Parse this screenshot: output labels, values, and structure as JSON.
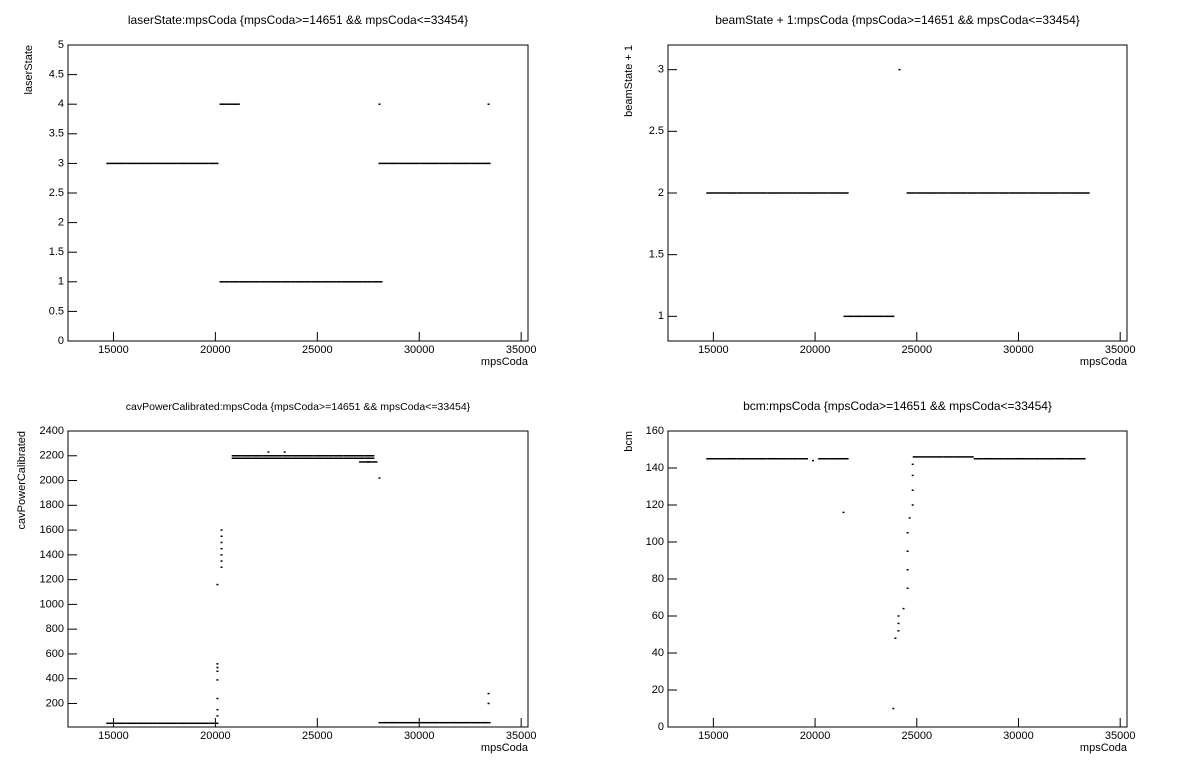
{
  "chart_data": [
    {
      "type": "scatter",
      "title": "laserState:mpsCoda {mpsCoda>=14651 && mpsCoda<=33454}",
      "x_label": "mpsCoda",
      "y_label": "laserState",
      "color": "#000000",
      "xlim": [
        12770,
        35335
      ],
      "xticks": [
        15000,
        20000,
        25000,
        30000,
        35000
      ],
      "ylim": [
        0,
        5
      ],
      "yticks": [
        0,
        0.5,
        1,
        1.5,
        2,
        2.5,
        3,
        3.5,
        4,
        4.5,
        5
      ],
      "x": [
        14900,
        15400,
        15900,
        16400,
        16900,
        17400,
        17900,
        18400,
        18900,
        19400,
        19900,
        20450,
        20950,
        20450,
        20950,
        21450,
        21950,
        22450,
        22950,
        23450,
        23950,
        24450,
        24950,
        25450,
        25950,
        26450,
        26950,
        27450,
        27950,
        28250,
        28750,
        29250,
        29750,
        30250,
        30750,
        31250,
        31750,
        32250,
        32750,
        33250,
        28050,
        33400
      ],
      "values": [
        3,
        3,
        3,
        3,
        3,
        3,
        3,
        3,
        3,
        3,
        3,
        4,
        4,
        1,
        1,
        1,
        1,
        1,
        1,
        1,
        1,
        1,
        1,
        1,
        1,
        1,
        1,
        1,
        1,
        3,
        3,
        3,
        3,
        3,
        3,
        3,
        3,
        3,
        3,
        3,
        4,
        4
      ]
    },
    {
      "type": "scatter",
      "title": "beamState + 1:mpsCoda {mpsCoda>=14651 && mpsCoda<=33454}",
      "x_label": "mpsCoda",
      "y_label": "beamState + 1",
      "color": "#000000",
      "xlim": [
        12770,
        35335
      ],
      "xticks": [
        15000,
        20000,
        25000,
        30000,
        35000
      ],
      "ylim": [
        0.8,
        3.2
      ],
      "yticks": [
        1,
        1.5,
        2,
        2.5,
        3
      ],
      "x": [
        14900,
        15400,
        15900,
        16400,
        16900,
        17400,
        17900,
        18400,
        18900,
        19400,
        19900,
        20400,
        20900,
        21400,
        21650,
        22150,
        22650,
        23150,
        23650,
        24150,
        24750,
        25250,
        25750,
        26250,
        26750,
        27250,
        27750,
        28250,
        28750,
        29250,
        29750,
        30250,
        30750,
        31250,
        31750,
        32250,
        32750,
        33250
      ],
      "values": [
        2,
        2,
        2,
        2,
        2,
        2,
        2,
        2,
        2,
        2,
        2,
        2,
        2,
        2,
        1,
        1,
        1,
        1,
        1,
        3,
        2,
        2,
        2,
        2,
        2,
        2,
        2,
        2,
        2,
        2,
        2,
        2,
        2,
        2,
        2,
        2,
        2,
        2
      ]
    },
    {
      "type": "scatter",
      "title": "cavPowerCalibrated:mpsCoda {mpsCoda>=14651 && mpsCoda<=33454}",
      "x_label": "mpsCoda",
      "y_label": "cavPowerCalibrated",
      "color": "#000000",
      "xlim": [
        12770,
        35335
      ],
      "xticks": [
        15000,
        20000,
        25000,
        30000,
        35000
      ],
      "ylim": [
        10,
        2400
      ],
      "yticks": [
        200,
        400,
        600,
        800,
        1000,
        1200,
        1400,
        1600,
        1800,
        2000,
        2200,
        2400
      ],
      "x": [
        14900,
        15400,
        15900,
        16400,
        16900,
        17400,
        17900,
        18400,
        18900,
        19400,
        19900,
        28250,
        28750,
        29250,
        29750,
        30250,
        30750,
        31250,
        31750,
        32250,
        32750,
        33250,
        20300,
        20300,
        20300,
        20300,
        20300,
        20300,
        20300,
        20100,
        20100,
        20100,
        20100,
        20100,
        20100,
        20100,
        20100,
        21050,
        21550,
        22050,
        22550,
        23050,
        23550,
        24050,
        24550,
        25050,
        25550,
        26050,
        26550,
        27050,
        27550,
        21050,
        21550,
        22050,
        22550,
        23050,
        23550,
        24050,
        24550,
        25050,
        25550,
        26050,
        26550,
        27050,
        27550,
        22600,
        23400,
        27300,
        27700,
        28050,
        33400,
        33400
      ],
      "values": [
        40,
        40,
        40,
        40,
        40,
        40,
        40,
        40,
        40,
        40,
        40,
        45,
        45,
        45,
        45,
        45,
        45,
        45,
        45,
        45,
        45,
        45,
        1600,
        1550,
        1500,
        1450,
        1400,
        1350,
        1300,
        1160,
        520,
        490,
        460,
        390,
        240,
        150,
        100,
        2200,
        2200,
        2200,
        2200,
        2200,
        2200,
        2200,
        2200,
        2200,
        2200,
        2200,
        2200,
        2200,
        2200,
        2180,
        2180,
        2180,
        2180,
        2180,
        2180,
        2180,
        2180,
        2180,
        2180,
        2180,
        2180,
        2180,
        2180,
        2230,
        2230,
        2150,
        2150,
        2020,
        280,
        200
      ]
    },
    {
      "type": "scatter",
      "title": "bcm:mpsCoda {mpsCoda>=14651 && mpsCoda<=33454}",
      "x_label": "mpsCoda",
      "y_label": "bcm",
      "color": "#000000",
      "xlim": [
        12770,
        35335
      ],
      "xticks": [
        15000,
        20000,
        25000,
        30000,
        35000
      ],
      "ylim": [
        0,
        160
      ],
      "yticks": [
        0,
        20,
        40,
        60,
        80,
        100,
        120,
        140,
        160
      ],
      "x": [
        14900,
        15400,
        15900,
        16400,
        16900,
        17400,
        17900,
        18400,
        18900,
        19400,
        19900,
        20400,
        20900,
        21400,
        21400,
        23850,
        23950,
        24100,
        24100,
        24100,
        24350,
        24550,
        24550,
        24550,
        24550,
        24650,
        24800,
        24800,
        24800,
        24800,
        25050,
        25550,
        26050,
        26550,
        27050,
        27550,
        28050,
        28550,
        29050,
        29550,
        30050,
        30550,
        31050,
        31550,
        32050,
        32550,
        33050
      ],
      "values": [
        145,
        145,
        145,
        145,
        145,
        145,
        145,
        145,
        145,
        145,
        144,
        145,
        145,
        145,
        116,
        10,
        48,
        52,
        56,
        60,
        64,
        75,
        85,
        95,
        105,
        113,
        120,
        128,
        136,
        142,
        146,
        146,
        146,
        146,
        146,
        146,
        145,
        145,
        145,
        145,
        145,
        145,
        145,
        145,
        145,
        145,
        145
      ]
    }
  ]
}
